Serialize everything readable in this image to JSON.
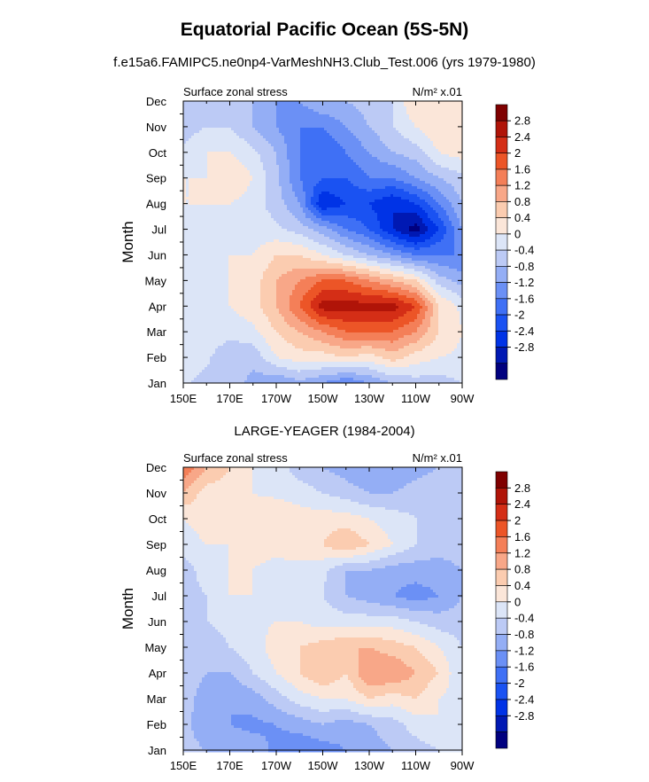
{
  "title": "Equatorial Pacific Ocean (5S-5N)",
  "subtitle": "f.e15a6.FAMIPC5.ne0np4-VarMeshNH3.Club_Test.006 (yrs 1979-1980)",
  "panel2_title": "LARGE-YEAGER (1984-2004)",
  "palette": [
    "#00007f",
    "#0019b3",
    "#0033e6",
    "#1a52f2",
    "#3f70f5",
    "#6b90f5",
    "#94aef5",
    "#bccaf5",
    "#dce5f7",
    "#fbe6d9",
    "#fbccb0",
    "#f8a788",
    "#f47f58",
    "#ec5527",
    "#d42e16",
    "#b01408",
    "#7f0000"
  ],
  "chart_data": [
    {
      "type": "heatmap",
      "name": "model",
      "left_label": "Surface zonal stress",
      "units_label": "N/m² x.01",
      "ylabel": "Month",
      "x": [
        "150E",
        "160E",
        "170E",
        "180",
        "170W",
        "160W",
        "150W",
        "140W",
        "130W",
        "120W",
        "110W",
        "100W",
        "90W"
      ],
      "y": [
        "Jan",
        "Feb",
        "Mar",
        "Apr",
        "May",
        "Jun",
        "Jul",
        "Aug",
        "Sep",
        "Oct",
        "Nov",
        "Dec"
      ],
      "x_ticks": [
        "150E",
        "170E",
        "170W",
        "150W",
        "130W",
        "110W",
        "90W"
      ],
      "levels": [
        -2.8,
        -2.4,
        -2,
        -1.6,
        -1.2,
        -0.8,
        -0.4,
        0,
        0.4,
        0.8,
        1.2,
        1.6,
        2,
        2.4,
        2.8
      ],
      "colorbar_labels": [
        "2.8",
        "2.4",
        "2",
        "1.6",
        "1.2",
        "0.8",
        "0.4",
        "0",
        "-0.4",
        "-0.8",
        "-1.2",
        "-1.6",
        "-2",
        "-2.4",
        "-2.8"
      ],
      "values": [
        [
          0.1,
          -0.2,
          -0.2,
          -0.5,
          -0.8,
          -0.5,
          -0.8,
          -1.2,
          -0.8,
          -0.4,
          -0.2,
          -0.2,
          0.0
        ],
        [
          0.3,
          0.1,
          -0.4,
          -0.3,
          0.4,
          0.6,
          0.6,
          0.8,
          0.6,
          1.0,
          0.6,
          0.4,
          0.3
        ],
        [
          0.3,
          0.3,
          0.2,
          0.3,
          0.8,
          1.2,
          1.6,
          2.0,
          2.0,
          2.0,
          1.6,
          0.8,
          0.4
        ],
        [
          0.3,
          0.3,
          0.4,
          0.6,
          1.2,
          2.0,
          3.0,
          3.0,
          3.0,
          3.0,
          2.4,
          0.8,
          0.3
        ],
        [
          0.3,
          0.3,
          0.4,
          0.6,
          1.2,
          1.6,
          2.0,
          2.0,
          1.6,
          1.2,
          0.8,
          -0.2,
          -0.6
        ],
        [
          0.3,
          0.3,
          0.4,
          0.4,
          0.8,
          0.8,
          0.4,
          0.0,
          -0.4,
          -0.8,
          -1.2,
          -1.2,
          -1.2
        ],
        [
          0.3,
          0.4,
          0.2,
          0.2,
          0.1,
          -0.2,
          -0.6,
          -1.2,
          -1.6,
          -2.4,
          -3.0,
          -2.0,
          -0.8
        ],
        [
          0.4,
          0.4,
          0.4,
          0.2,
          -0.2,
          -0.8,
          -2.4,
          -2.0,
          -2.0,
          -2.4,
          -2.0,
          -1.2,
          -0.4
        ],
        [
          0.4,
          0.4,
          0.8,
          0.4,
          -0.3,
          -1.2,
          -1.6,
          -1.6,
          -1.2,
          -1.2,
          -0.8,
          -0.4,
          -0.1
        ],
        [
          0.1,
          0.4,
          0.4,
          0.1,
          -0.4,
          -1.2,
          -1.6,
          -1.2,
          -0.8,
          -0.4,
          -0.2,
          0.4,
          0.6
        ],
        [
          -0.2,
          0.0,
          0.0,
          -0.4,
          -0.8,
          -1.2,
          -1.2,
          -0.8,
          -0.4,
          0.0,
          0.4,
          0.8,
          0.6
        ],
        [
          -0.2,
          -0.2,
          -0.2,
          -0.4,
          -0.8,
          -0.8,
          -0.4,
          -0.4,
          -0.2,
          0.0,
          0.8,
          0.8,
          0.4
        ]
      ]
    },
    {
      "type": "heatmap",
      "name": "obs",
      "left_label": "Surface zonal stress",
      "units_label": "N/m² x.01",
      "ylabel": "Month",
      "x": [
        "150E",
        "160E",
        "170E",
        "180",
        "170W",
        "160W",
        "150W",
        "140W",
        "130W",
        "120W",
        "110W",
        "100W",
        "90W"
      ],
      "y": [
        "Jan",
        "Feb",
        "Mar",
        "Apr",
        "May",
        "Jun",
        "Jul",
        "Aug",
        "Sep",
        "Oct",
        "Nov",
        "Dec"
      ],
      "x_ticks": [
        "150E",
        "170E",
        "170W",
        "150W",
        "130W",
        "110W",
        "90W"
      ],
      "levels": [
        -2.8,
        -2.4,
        -2,
        -1.6,
        -1.2,
        -0.8,
        -0.4,
        0,
        0.4,
        0.8,
        1.2,
        1.6,
        2,
        2.4,
        2.8
      ],
      "colorbar_labels": [
        "2.8",
        "2.4",
        "2",
        "1.6",
        "1.2",
        "0.8",
        "0.4",
        "0",
        "-0.4",
        "-0.8",
        "-1.2",
        "-1.6",
        "-2",
        "-2.4",
        "-2.8"
      ],
      "values": [
        [
          -0.2,
          -0.4,
          -0.6,
          -0.6,
          -0.9,
          -1.2,
          -1.0,
          -0.8,
          -0.6,
          -0.4,
          -0.2,
          0.0,
          0.2
        ],
        [
          -0.2,
          -0.8,
          -0.8,
          -0.9,
          -0.8,
          -0.6,
          -0.4,
          -0.6,
          -0.4,
          -0.2,
          0.2,
          0.4,
          0.2
        ],
        [
          -0.2,
          -0.6,
          -0.8,
          -0.6,
          -0.2,
          0.2,
          0.4,
          0.4,
          0.8,
          0.6,
          0.8,
          0.4,
          0.2
        ],
        [
          -0.2,
          -0.4,
          -0.4,
          0.0,
          0.4,
          0.8,
          1.2,
          0.8,
          1.6,
          1.6,
          1.2,
          0.8,
          0.0
        ],
        [
          -0.2,
          -0.4,
          0.0,
          0.2,
          0.6,
          0.8,
          1.0,
          1.2,
          1.2,
          1.0,
          0.8,
          0.4,
          0.0
        ],
        [
          -0.2,
          0.0,
          0.2,
          0.3,
          0.4,
          0.4,
          0.2,
          0.2,
          0.2,
          0.2,
          0.0,
          -0.2,
          -0.2
        ],
        [
          -0.2,
          0.0,
          0.4,
          0.4,
          0.3,
          0.2,
          0.0,
          -0.4,
          -0.6,
          -0.8,
          -1.0,
          -0.8,
          -0.4
        ],
        [
          -0.2,
          0.2,
          0.4,
          0.4,
          0.2,
          0.2,
          0.1,
          -0.4,
          -0.4,
          -0.6,
          -0.6,
          -0.6,
          -0.4
        ],
        [
          0.2,
          0.4,
          0.4,
          0.6,
          0.6,
          0.8,
          0.8,
          1.2,
          0.8,
          0.4,
          0.0,
          -0.2,
          -0.2
        ],
        [
          0.4,
          0.6,
          0.6,
          0.6,
          0.8,
          0.6,
          0.6,
          0.6,
          0.4,
          0.2,
          0.0,
          -0.2,
          -0.2
        ],
        [
          1.2,
          0.6,
          0.6,
          0.4,
          0.3,
          0.2,
          0.0,
          -0.2,
          -0.4,
          -0.4,
          -0.2,
          0.0,
          -0.2
        ],
        [
          2.0,
          1.2,
          0.8,
          0.4,
          0.2,
          -0.2,
          -0.4,
          -0.6,
          -0.8,
          -0.8,
          -0.6,
          -0.4,
          -0.2
        ]
      ]
    }
  ]
}
